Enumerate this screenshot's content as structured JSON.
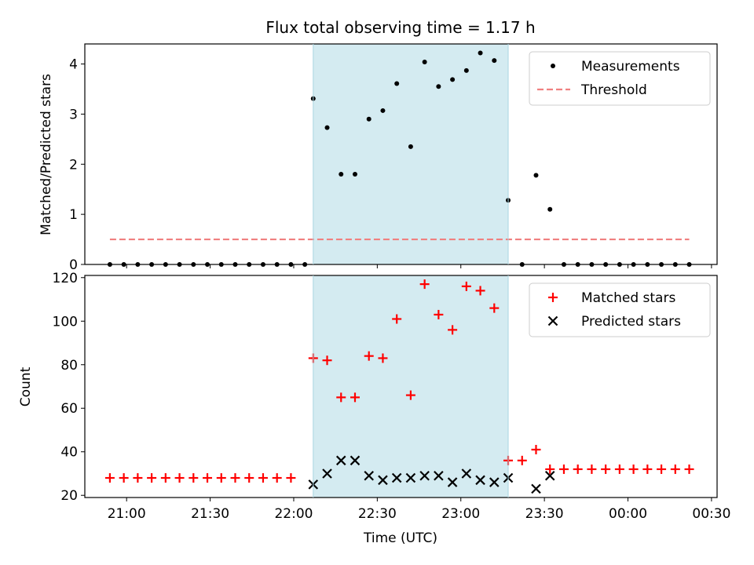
{
  "chart_data": {
    "type": "scatter",
    "title": "Flux total observing time = 1.17 h",
    "xlabel": "Time (UTC)",
    "x_tick_labels": [
      "21:00",
      "21:30",
      "22:00",
      "22:30",
      "23:00",
      "23:30",
      "00:00",
      "00:30"
    ],
    "x_tick_times": [
      "21:00",
      "21:30",
      "22:00",
      "22:30",
      "23:00",
      "23:30",
      "00:00",
      "00:30"
    ],
    "x_range": [
      "20:45",
      "00:32"
    ],
    "shaded_interval": {
      "start": "22:07",
      "end": "23:17",
      "color": "#d4ebf1"
    },
    "times": [
      "20:54",
      "20:59",
      "21:04",
      "21:09",
      "21:14",
      "21:19",
      "21:24",
      "21:29",
      "21:34",
      "21:39",
      "21:44",
      "21:49",
      "21:54",
      "21:59",
      "22:04",
      "22:07",
      "22:12",
      "22:17",
      "22:22",
      "22:27",
      "22:32",
      "22:37",
      "22:42",
      "22:47",
      "22:52",
      "22:57",
      "23:02",
      "23:07",
      "23:12",
      "23:17",
      "23:22",
      "23:27",
      "23:32",
      "23:37",
      "23:42",
      "23:47",
      "23:52",
      "23:57",
      "00:02",
      "00:07",
      "00:12",
      "00:17",
      "00:22"
    ],
    "panels": [
      {
        "ylabel": "Matched/Predicted stars",
        "ylim": [
          0,
          4.4
        ],
        "y_ticks": [
          0,
          1,
          2,
          3,
          4
        ],
        "legend": "top-right",
        "series": [
          {
            "name": "Measurements",
            "marker": "dot",
            "color": "#000000",
            "values": [
              0,
              0,
              0,
              0,
              0,
              0,
              0,
              0,
              0,
              0,
              0,
              0,
              0,
              0,
              0,
              3.31,
              2.73,
              1.8,
              1.8,
              2.9,
              3.07,
              3.61,
              2.35,
              4.04,
              3.55,
              3.69,
              3.87,
              4.22,
              4.07,
              1.28,
              0,
              1.78,
              1.1,
              0,
              0,
              0,
              0,
              0,
              0,
              0,
              0,
              0,
              0
            ]
          },
          {
            "name": "Threshold",
            "style": "dashed",
            "color": "#f08080",
            "value": 0.5,
            "x_range": [
              "20:54",
              "00:22"
            ]
          }
        ]
      },
      {
        "ylabel": "Count",
        "ylim": [
          19,
          121
        ],
        "y_ticks": [
          20,
          40,
          60,
          80,
          100,
          120
        ],
        "legend": "top-right",
        "series": [
          {
            "name": "Matched stars",
            "marker": "plus",
            "color": "#ff0000",
            "values": [
              28,
              28,
              28,
              28,
              28,
              28,
              28,
              28,
              28,
              28,
              28,
              28,
              28,
              28,
              null,
              83,
              82,
              65,
              65,
              84,
              83,
              101,
              66,
              117,
              103,
              96,
              116,
              114,
              106,
              36,
              36,
              41,
              32,
              32,
              32,
              32,
              32,
              32,
              32,
              32,
              32,
              32,
              32
            ]
          },
          {
            "name": "Predicted stars",
            "marker": "x",
            "color": "#000000",
            "values": [
              null,
              null,
              null,
              null,
              null,
              null,
              null,
              null,
              null,
              null,
              null,
              null,
              null,
              null,
              null,
              25,
              30,
              36,
              36,
              29,
              27,
              28,
              28,
              29,
              29,
              26,
              30,
              27,
              26,
              28,
              null,
              23,
              29,
              null,
              null,
              null,
              null,
              null,
              null,
              null,
              null,
              null,
              null
            ]
          }
        ]
      }
    ]
  }
}
